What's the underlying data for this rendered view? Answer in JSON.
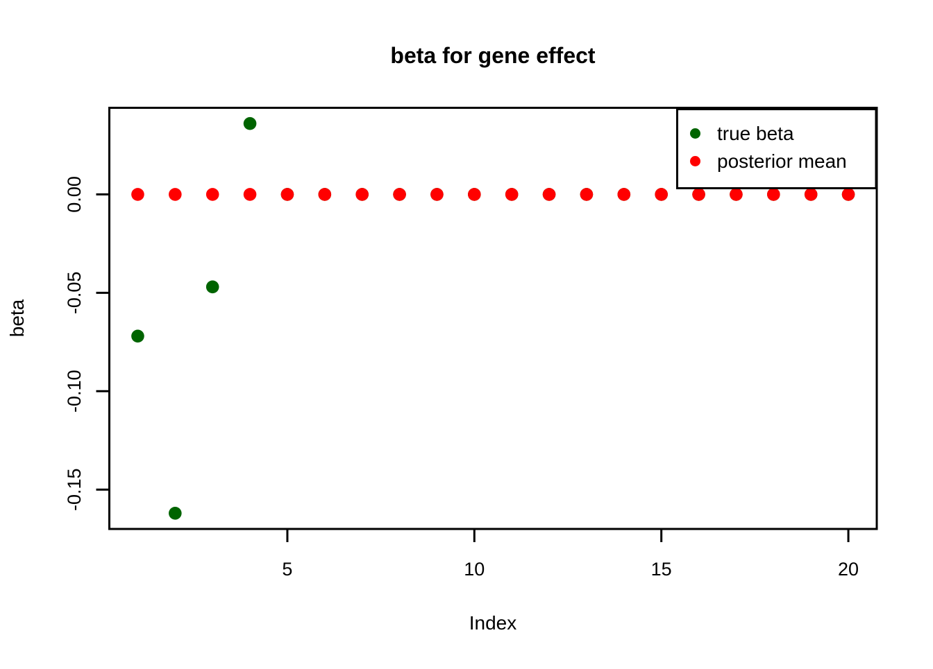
{
  "chart_data": {
    "type": "scatter",
    "title": "beta for gene effect",
    "xlabel": "Index",
    "ylabel": "beta",
    "x": [
      1,
      2,
      3,
      4,
      5,
      6,
      7,
      8,
      9,
      10,
      11,
      12,
      13,
      14,
      15,
      16,
      17,
      18,
      19,
      20
    ],
    "series": [
      {
        "name": "true beta",
        "color": "#006400",
        "marker": "filled-circle",
        "values": [
          -0.072,
          -0.162,
          -0.047,
          0.036,
          0,
          0,
          0,
          0,
          0,
          0,
          0,
          0,
          0,
          0,
          0,
          0,
          0,
          0,
          0,
          0
        ]
      },
      {
        "name": "posterior mean",
        "color": "#ff0000",
        "marker": "filled-circle",
        "values": [
          0,
          0,
          0,
          0,
          0,
          0,
          0,
          0,
          0,
          0,
          0,
          0,
          0,
          0,
          0,
          0,
          0,
          0,
          0,
          0
        ]
      }
    ],
    "x_ticks": {
      "values": [
        5,
        10,
        15,
        20
      ],
      "labels": [
        "5",
        "10",
        "15",
        "20"
      ]
    },
    "y_ticks": {
      "values": [
        0,
        -0.05,
        -0.1,
        -0.15
      ],
      "labels": [
        "0.00",
        "-0.05",
        "-0.10",
        "-0.15"
      ]
    },
    "xlim": [
      0.24,
      20.76
    ],
    "ylim": [
      -0.17,
      0.044
    ],
    "grid": false,
    "legend_position": "top-right",
    "background_color": "#ffffff",
    "axis_color": "#000000"
  },
  "legend": {
    "items": [
      {
        "label": "true beta",
        "color": "#006400"
      },
      {
        "label": "posterior mean",
        "color": "#ff0000"
      }
    ]
  }
}
